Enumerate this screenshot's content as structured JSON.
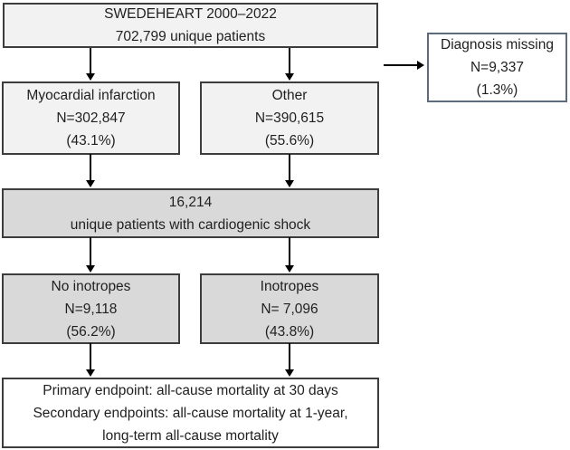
{
  "title": "SWEDEHEART cardiogenic shock patient flowchart",
  "colors": {
    "light_fill": "#f2f2f2",
    "dark_fill": "#d9d9d9",
    "white_fill": "#ffffff",
    "box_border": "#3d3d3d",
    "diagnosis_border": "#5e6b7c",
    "arrow": "#000000"
  },
  "boxes": {
    "swedeheart": {
      "lines": [
        "SWEDEHEART 2000–2022",
        "702,799 unique patients"
      ]
    },
    "diagnosis_missing": {
      "lines": [
        "Diagnosis missing",
        "N=9,337",
        "(1.3%)"
      ]
    },
    "myocardial_infarction": {
      "lines": [
        "Myocardial infarction",
        "N=302,847",
        "(43.1%)"
      ]
    },
    "other": {
      "lines": [
        "Other",
        "N=390,615",
        "(55.6%)"
      ]
    },
    "cardiogenic_shock": {
      "lines": [
        "16,214",
        "unique patients with cardiogenic shock"
      ]
    },
    "no_inotropes": {
      "lines": [
        "No inotropes",
        "N=9,118",
        "(56.2%)"
      ]
    },
    "inotropes": {
      "lines": [
        "Inotropes",
        "N= 7,096",
        "(43.8%)"
      ]
    },
    "endpoints": {
      "lines": [
        "Primary endpoint: all-cause mortality at 30 days",
        "Secondary endpoints: all-cause mortality at 1-year,",
        "long-term all-cause mortality"
      ]
    }
  }
}
